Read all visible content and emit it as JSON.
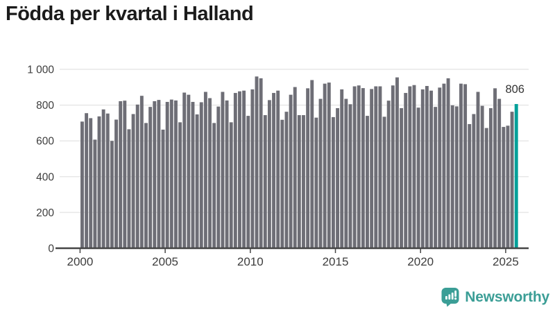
{
  "title": "Födda per kvartal i Halland",
  "colors": {
    "bar": "#6e6e76",
    "highlight": "#00a099",
    "grid": "#e7e7e7",
    "axis_line": "#454545",
    "tick_text": "#3d3d3d",
    "value_label_text": "#333333",
    "title_text": "#1b1b1b",
    "brand": "#3b9e96"
  },
  "chart_data": {
    "type": "bar",
    "title": "Födda per kvartal i Halland",
    "xlabel": "",
    "ylabel": "",
    "ylim": [
      0,
      1000
    ],
    "y_ticks": [
      0,
      200,
      400,
      600,
      800,
      1000
    ],
    "y_tick_labels": [
      "0",
      "200",
      "400",
      "600",
      "800",
      "1 000"
    ],
    "x_tick_labels": [
      "2000",
      "2005",
      "2010",
      "2015",
      "2020",
      "2025"
    ],
    "start_period": "2000 Q1",
    "end_period": "2025 Q3",
    "quarters_per_year": 4,
    "grid": true,
    "legend": false,
    "highlight_last": true,
    "last_value_label": "806",
    "values": [
      708,
      755,
      727,
      607,
      737,
      776,
      753,
      600,
      719,
      822,
      825,
      665,
      750,
      803,
      852,
      700,
      790,
      822,
      829,
      663,
      818,
      831,
      826,
      704,
      870,
      858,
      818,
      748,
      816,
      874,
      839,
      700,
      792,
      874,
      826,
      704,
      868,
      877,
      881,
      740,
      888,
      960,
      950,
      744,
      828,
      868,
      881,
      718,
      763,
      858,
      901,
      744,
      744,
      894,
      940,
      730,
      835,
      920,
      926,
      733,
      783,
      888,
      835,
      805,
      905,
      910,
      895,
      740,
      890,
      905,
      905,
      735,
      825,
      910,
      955,
      783,
      868,
      905,
      912,
      786,
      888,
      907,
      881,
      790,
      898,
      920,
      950,
      799,
      793,
      920,
      917,
      694,
      750,
      874,
      796,
      672,
      783,
      894,
      835,
      678,
      685,
      763,
      806
    ]
  },
  "footer": {
    "brand": "Newsworthy"
  }
}
